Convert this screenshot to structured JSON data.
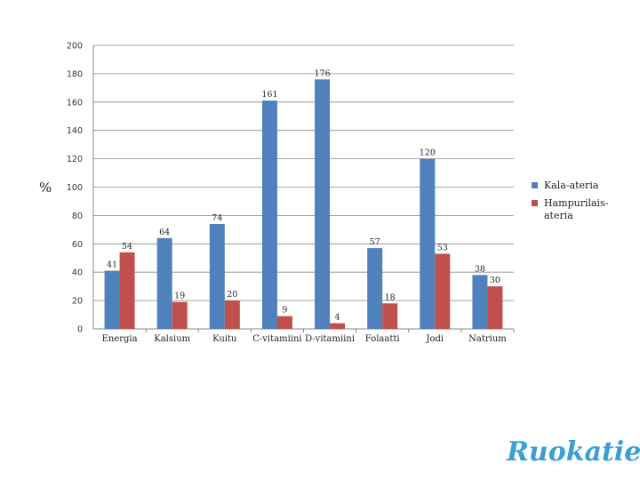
{
  "chart_data": {
    "type": "bar",
    "title": "",
    "xlabel": "",
    "ylabel": "%",
    "ylim": [
      0,
      200
    ],
    "yticks": [
      0,
      20,
      40,
      60,
      80,
      100,
      120,
      140,
      160,
      180,
      200
    ],
    "grid": true,
    "legend_position": "right",
    "categories": [
      "Energia",
      "Kalsium",
      "Kuitu",
      "C-vitamiini",
      "D-vitamiini",
      "Folaatti",
      "Jodi",
      "Natrium"
    ],
    "series": [
      {
        "name": "Kala-ateria",
        "color": "#4f81bd",
        "values": [
          41,
          64,
          74,
          161,
          176,
          57,
          120,
          38
        ]
      },
      {
        "name": "Hampurilais-ateria",
        "color": "#c0504d",
        "values": [
          54,
          19,
          20,
          9,
          4,
          18,
          53,
          30
        ]
      }
    ]
  },
  "logo": {
    "text": "Ruokatieto",
    "color": "#3b9fd6"
  }
}
